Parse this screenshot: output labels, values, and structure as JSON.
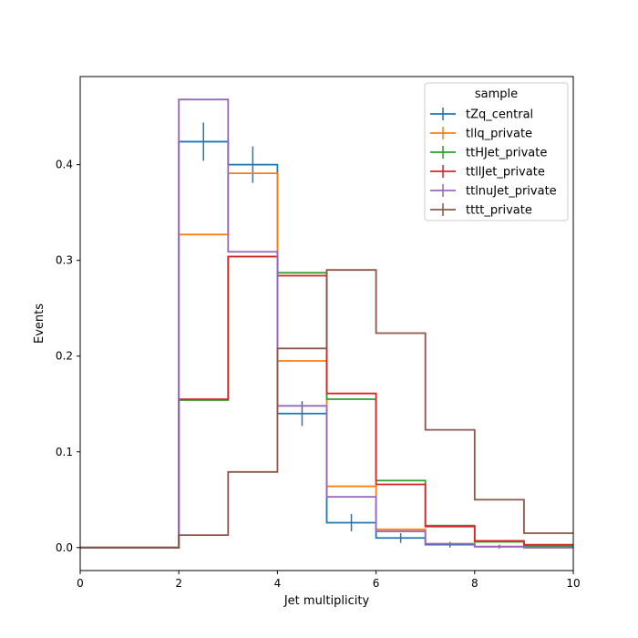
{
  "chart_data": {
    "type": "histogram",
    "xlabel": "Jet multiplicity",
    "ylabel": "Events",
    "xlim": [
      0,
      10
    ],
    "ylim": [
      -0.024,
      0.492
    ],
    "bin_edges": [
      0,
      1,
      2,
      3,
      4,
      5,
      6,
      7,
      8,
      9,
      10
    ],
    "x_ticks": [
      0,
      2,
      4,
      6,
      8,
      10
    ],
    "x_tick_labels": [
      "0",
      "2",
      "4",
      "6",
      "8",
      "10"
    ],
    "y_ticks": [
      0.0,
      0.1,
      0.2,
      0.3,
      0.4
    ],
    "y_tick_labels": [
      "0.0",
      "0.1",
      "0.2",
      "0.3",
      "0.4"
    ],
    "grid": false,
    "legend": {
      "title": "sample",
      "placement": "top-right"
    },
    "series": [
      {
        "name": "tZq_central",
        "color": "#1f77b4",
        "values": [
          0,
          0,
          0.424,
          0.4,
          0.14,
          0.026,
          0.01,
          0.003,
          0.001,
          0.001
        ],
        "errors": [
          0,
          0,
          0.02,
          0.019,
          0.013,
          0.009,
          0.005,
          0.003,
          0.002,
          0.002
        ]
      },
      {
        "name": "tllq_private",
        "color": "#ff7f0e",
        "values": [
          0,
          0,
          0.327,
          0.391,
          0.195,
          0.064,
          0.019,
          0.004,
          0.001,
          0.0
        ],
        "errors": [
          0,
          0,
          0,
          0,
          0,
          0,
          0,
          0,
          0,
          0
        ]
      },
      {
        "name": "ttHJet_private",
        "color": "#2ca02c",
        "values": [
          0,
          0,
          0.154,
          0.304,
          0.287,
          0.155,
          0.07,
          0.023,
          0.006,
          0.002
        ],
        "errors": [
          0,
          0,
          0,
          0,
          0,
          0,
          0,
          0,
          0,
          0
        ]
      },
      {
        "name": "ttllJet_private",
        "color": "#d62728",
        "values": [
          0,
          0,
          0.155,
          0.304,
          0.284,
          0.161,
          0.066,
          0.022,
          0.007,
          0.003
        ],
        "errors": [
          0,
          0,
          0,
          0,
          0,
          0,
          0,
          0,
          0,
          0
        ]
      },
      {
        "name": "ttlnuJet_private",
        "color": "#9467bd",
        "values": [
          0,
          0,
          0.468,
          0.309,
          0.148,
          0.053,
          0.017,
          0.004,
          0.001,
          0.0
        ],
        "errors": [
          0,
          0,
          0,
          0,
          0,
          0,
          0,
          0,
          0,
          0
        ]
      },
      {
        "name": "tttt_private",
        "color": "#8c564b",
        "values": [
          0,
          0,
          0.013,
          0.079,
          0.208,
          0.29,
          0.224,
          0.123,
          0.05,
          0.015
        ],
        "errors": [
          0,
          0,
          0,
          0,
          0,
          0,
          0,
          0,
          0,
          0
        ]
      }
    ]
  }
}
